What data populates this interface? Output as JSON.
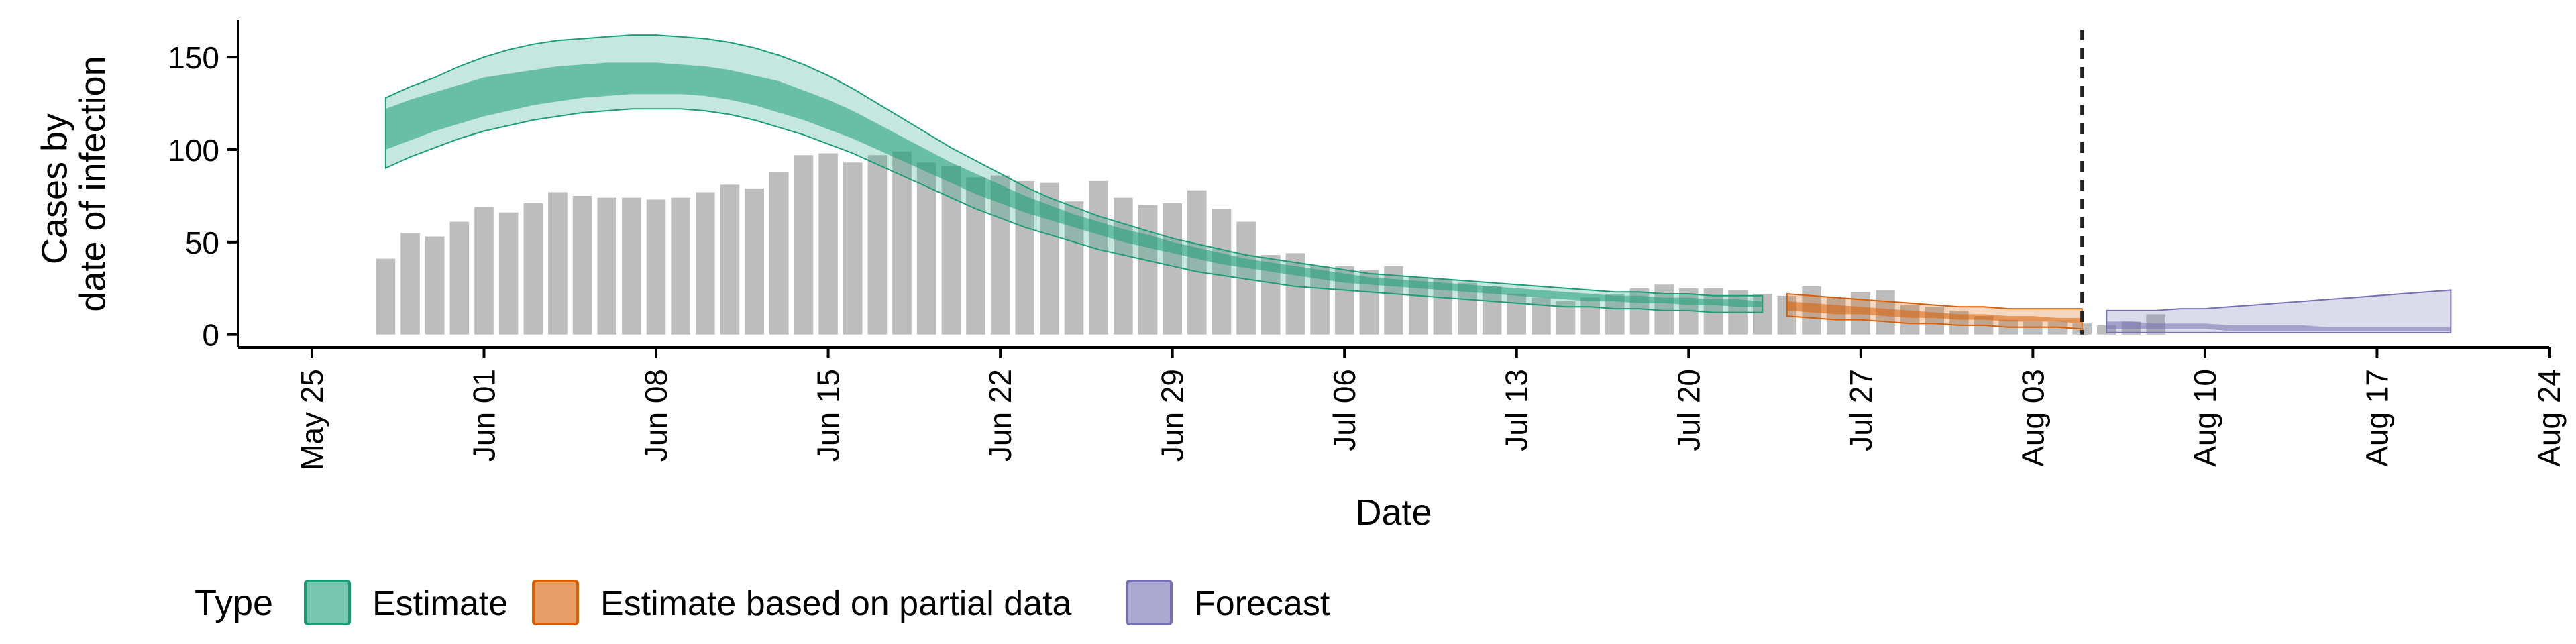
{
  "chart_data": {
    "type": "bar",
    "xlabel": "Date",
    "ylabel_lines": [
      "Cases by",
      "date of infection"
    ],
    "x_range": [
      "2020-05-22",
      "2020-08-24"
    ],
    "ylim": [
      -7,
      170
    ],
    "y_ticks": [
      0,
      50,
      100,
      150
    ],
    "x_ticks": [
      {
        "date": "2020-05-25",
        "label": "May 25"
      },
      {
        "date": "2020-06-01",
        "label": "Jun 01"
      },
      {
        "date": "2020-06-08",
        "label": "Jun 08"
      },
      {
        "date": "2020-06-15",
        "label": "Jun 15"
      },
      {
        "date": "2020-06-22",
        "label": "Jun 22"
      },
      {
        "date": "2020-06-29",
        "label": "Jun 29"
      },
      {
        "date": "2020-07-06",
        "label": "Jul 06"
      },
      {
        "date": "2020-07-13",
        "label": "Jul 13"
      },
      {
        "date": "2020-07-20",
        "label": "Jul 20"
      },
      {
        "date": "2020-07-27",
        "label": "Jul 27"
      },
      {
        "date": "2020-08-03",
        "label": "Aug 03"
      },
      {
        "date": "2020-08-10",
        "label": "Aug 10"
      },
      {
        "date": "2020-08-17",
        "label": "Aug 17"
      },
      {
        "date": "2020-08-24",
        "label": "Aug 24"
      }
    ],
    "forecast_start": "2020-08-05",
    "bars": {
      "start": "2020-05-28",
      "color": "#bdbdbd",
      "values": [
        41,
        55,
        53,
        61,
        69,
        66,
        71,
        77,
        75,
        74,
        74,
        73,
        74,
        77,
        81,
        79,
        88,
        97,
        98,
        93,
        97,
        99,
        93,
        91,
        85,
        86,
        83,
        82,
        72,
        83,
        74,
        70,
        71,
        78,
        68,
        61,
        43,
        44,
        37,
        37,
        35,
        37,
        31,
        30,
        28,
        26,
        22,
        20,
        18,
        20,
        22,
        25,
        27,
        25,
        25,
        24,
        22,
        21,
        26,
        20,
        23,
        24,
        16,
        15,
        13,
        10,
        8,
        7,
        7,
        6,
        5,
        7,
        11
      ]
    },
    "series": [
      {
        "name": "Estimate",
        "color": "#1b9e77",
        "start": "2020-05-28",
        "mid_lo": [
          100,
          105,
          110,
          114,
          118,
          121,
          124,
          126,
          128,
          129,
          130,
          130,
          130,
          129,
          127,
          124,
          120,
          116,
          111,
          106,
          100,
          94,
          88,
          82,
          76,
          71,
          66,
          62,
          58,
          54,
          50,
          47,
          44,
          41,
          38,
          36,
          34,
          32,
          30,
          28,
          27,
          26,
          25,
          24,
          23,
          22,
          21,
          20,
          19,
          18,
          18,
          17,
          17,
          16,
          16,
          15,
          15
        ],
        "mid_hi": [
          122,
          127,
          131,
          135,
          139,
          141,
          143,
          145,
          146,
          147,
          147,
          147,
          146,
          145,
          143,
          140,
          137,
          132,
          127,
          121,
          114,
          107,
          100,
          93,
          87,
          81,
          75,
          70,
          65,
          61,
          57,
          54,
          50,
          47,
          44,
          41,
          39,
          37,
          35,
          33,
          31,
          30,
          29,
          28,
          27,
          26,
          25,
          24,
          23,
          22,
          21,
          21,
          20,
          20,
          19,
          19,
          18
        ],
        "outer_lo": [
          90,
          96,
          101,
          106,
          110,
          113,
          116,
          118,
          120,
          121,
          122,
          122,
          122,
          121,
          119,
          116,
          112,
          108,
          103,
          98,
          92,
          86,
          80,
          74,
          68,
          63,
          58,
          54,
          50,
          46,
          43,
          40,
          37,
          34,
          32,
          30,
          28,
          26,
          25,
          24,
          23,
          22,
          21,
          20,
          19,
          18,
          17,
          16,
          15,
          15,
          14,
          14,
          13,
          13,
          12,
          12,
          12
        ],
        "outer_hi": [
          128,
          134,
          139,
          145,
          150,
          154,
          157,
          159,
          160,
          161,
          162,
          162,
          161,
          160,
          158,
          155,
          151,
          146,
          140,
          133,
          125,
          117,
          109,
          101,
          94,
          87,
          80,
          74,
          69,
          64,
          60,
          56,
          52,
          49,
          46,
          43,
          41,
          39,
          37,
          35,
          33,
          32,
          31,
          30,
          29,
          28,
          27,
          26,
          25,
          24,
          23,
          23,
          22,
          22,
          21,
          21,
          21
        ]
      },
      {
        "name": "Estimate based on partial data",
        "color": "#d95f02",
        "start": "2020-07-24",
        "mid_lo": [
          13,
          12,
          11,
          11,
          10,
          9,
          9,
          8,
          8,
          7,
          7,
          7,
          6
        ],
        "mid_hi": [
          18,
          17,
          16,
          15,
          14,
          13,
          12,
          11,
          11,
          10,
          10,
          9,
          9
        ],
        "outer_lo": [
          10,
          9,
          8,
          8,
          7,
          6,
          6,
          5,
          5,
          4,
          4,
          4,
          3
        ],
        "outer_hi": [
          22,
          21,
          20,
          19,
          18,
          17,
          16,
          15,
          15,
          14,
          14,
          14,
          14
        ]
      },
      {
        "name": "Forecast",
        "color": "#7570b3",
        "start": "2020-08-06",
        "mid_lo": [
          3,
          3,
          3,
          3,
          3,
          2,
          2,
          2,
          2,
          2,
          2,
          2,
          2,
          2,
          2
        ],
        "mid_hi": [
          7,
          7,
          6,
          6,
          6,
          5,
          5,
          5,
          5,
          4,
          4,
          4,
          4,
          4,
          4
        ],
        "outer_lo": [
          1,
          1,
          1,
          1,
          1,
          1,
          1,
          1,
          1,
          1,
          1,
          1,
          1,
          1,
          1
        ],
        "outer_hi": [
          13,
          13,
          13,
          14,
          14,
          15,
          16,
          17,
          18,
          19,
          20,
          21,
          22,
          23,
          24
        ]
      }
    ],
    "legend": {
      "title": "Type",
      "placement": "bottom",
      "entries": [
        "Estimate",
        "Estimate based on partial data",
        "Forecast"
      ]
    }
  }
}
